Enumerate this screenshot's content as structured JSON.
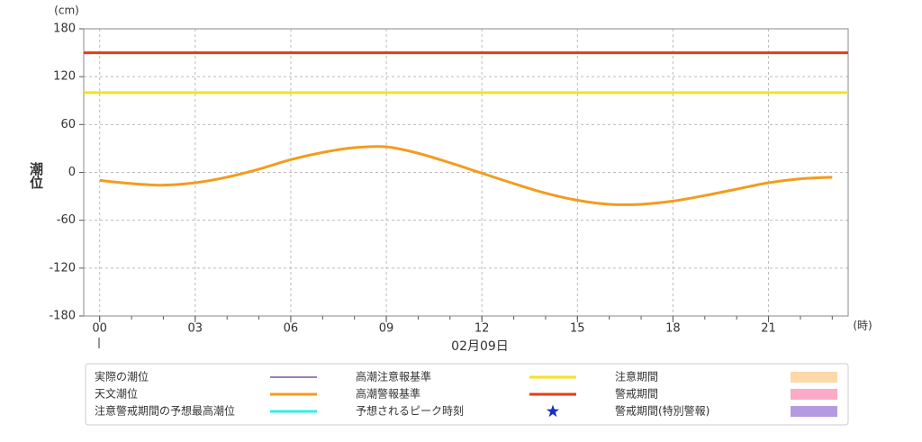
{
  "chart_data": {
    "type": "line",
    "y_axis_label": "潮位",
    "y_unit": "(cm)",
    "x_unit": "(時)",
    "date": "02月09日",
    "x": [
      0,
      1,
      2,
      3,
      4,
      5,
      6,
      7,
      8,
      9,
      10,
      11,
      12,
      13,
      14,
      15,
      16,
      17,
      18,
      19,
      20,
      21,
      22,
      23
    ],
    "xlim": [
      -0.5,
      23.5
    ],
    "xticks": [
      {
        "value": 0,
        "label": "00"
      },
      {
        "value": 3,
        "label": "03"
      },
      {
        "value": 6,
        "label": "06"
      },
      {
        "value": 9,
        "label": "09"
      },
      12,
      15,
      18,
      21
    ],
    "ylim": [
      -180,
      180
    ],
    "yticks": [
      -180,
      -120,
      -60,
      0,
      60,
      120,
      180
    ],
    "grid": true,
    "series": [
      {
        "name": "天文潮位",
        "color": "#f39c1e",
        "values": [
          -10,
          -14,
          -16,
          -13,
          -6,
          4,
          16,
          25,
          31,
          32,
          24,
          12,
          -1,
          -14,
          -26,
          -35,
          -40,
          -40,
          -36,
          -29,
          -21,
          -13,
          -8,
          -6
        ]
      }
    ],
    "thresholds": [
      {
        "name": "高潮注意報基準",
        "color": "#f2e21e",
        "value": 100
      },
      {
        "name": "高潮警報基準",
        "color": "#e63c12",
        "value": 150
      }
    ],
    "other_legend": [
      {
        "name": "実際の潮位",
        "color": "#7b52a8",
        "symbol": "thin-line"
      },
      {
        "name": "注意警戒期間の予想最高潮位",
        "color": "#33eee4",
        "symbol": "line"
      },
      {
        "name": "予想されるピーク時刻",
        "color": "#1a2fc0",
        "symbol": "star"
      },
      {
        "name": "注意期間",
        "color": "#fcd9a8",
        "symbol": "rect"
      },
      {
        "name": "警戒期間",
        "color": "#fbaac8",
        "symbol": "rect"
      },
      {
        "name": "警戒期間(特別警報)",
        "color": "#b59ae0",
        "symbol": "rect"
      }
    ]
  }
}
